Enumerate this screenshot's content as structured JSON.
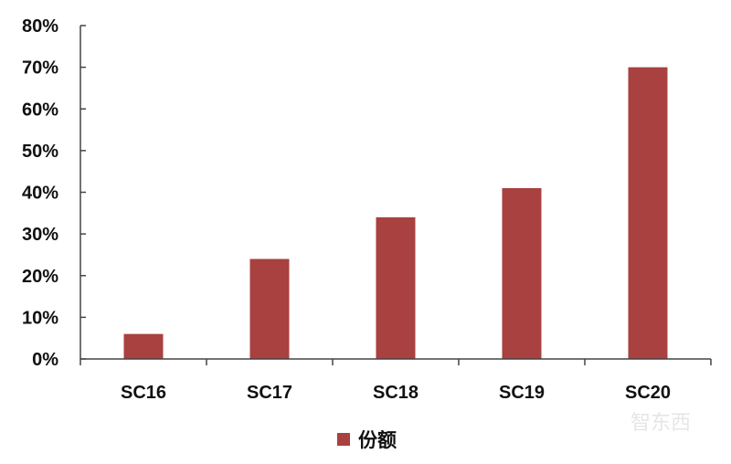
{
  "chart_data": {
    "type": "bar",
    "categories": [
      "SC16",
      "SC17",
      "SC18",
      "SC19",
      "SC20"
    ],
    "series": [
      {
        "name": "份额",
        "values": [
          6,
          24,
          34,
          41,
          70
        ],
        "color": "#A8413F"
      }
    ],
    "ylim": [
      0,
      80
    ],
    "yticks": [
      "0%",
      "10%",
      "20%",
      "30%",
      "40%",
      "50%",
      "60%",
      "70%",
      "80%"
    ],
    "ylabel": "",
    "xlabel": "",
    "title": "",
    "grid": false,
    "legend": {
      "position": "bottom",
      "entries": [
        "份额"
      ]
    }
  },
  "watermark": "智东西"
}
